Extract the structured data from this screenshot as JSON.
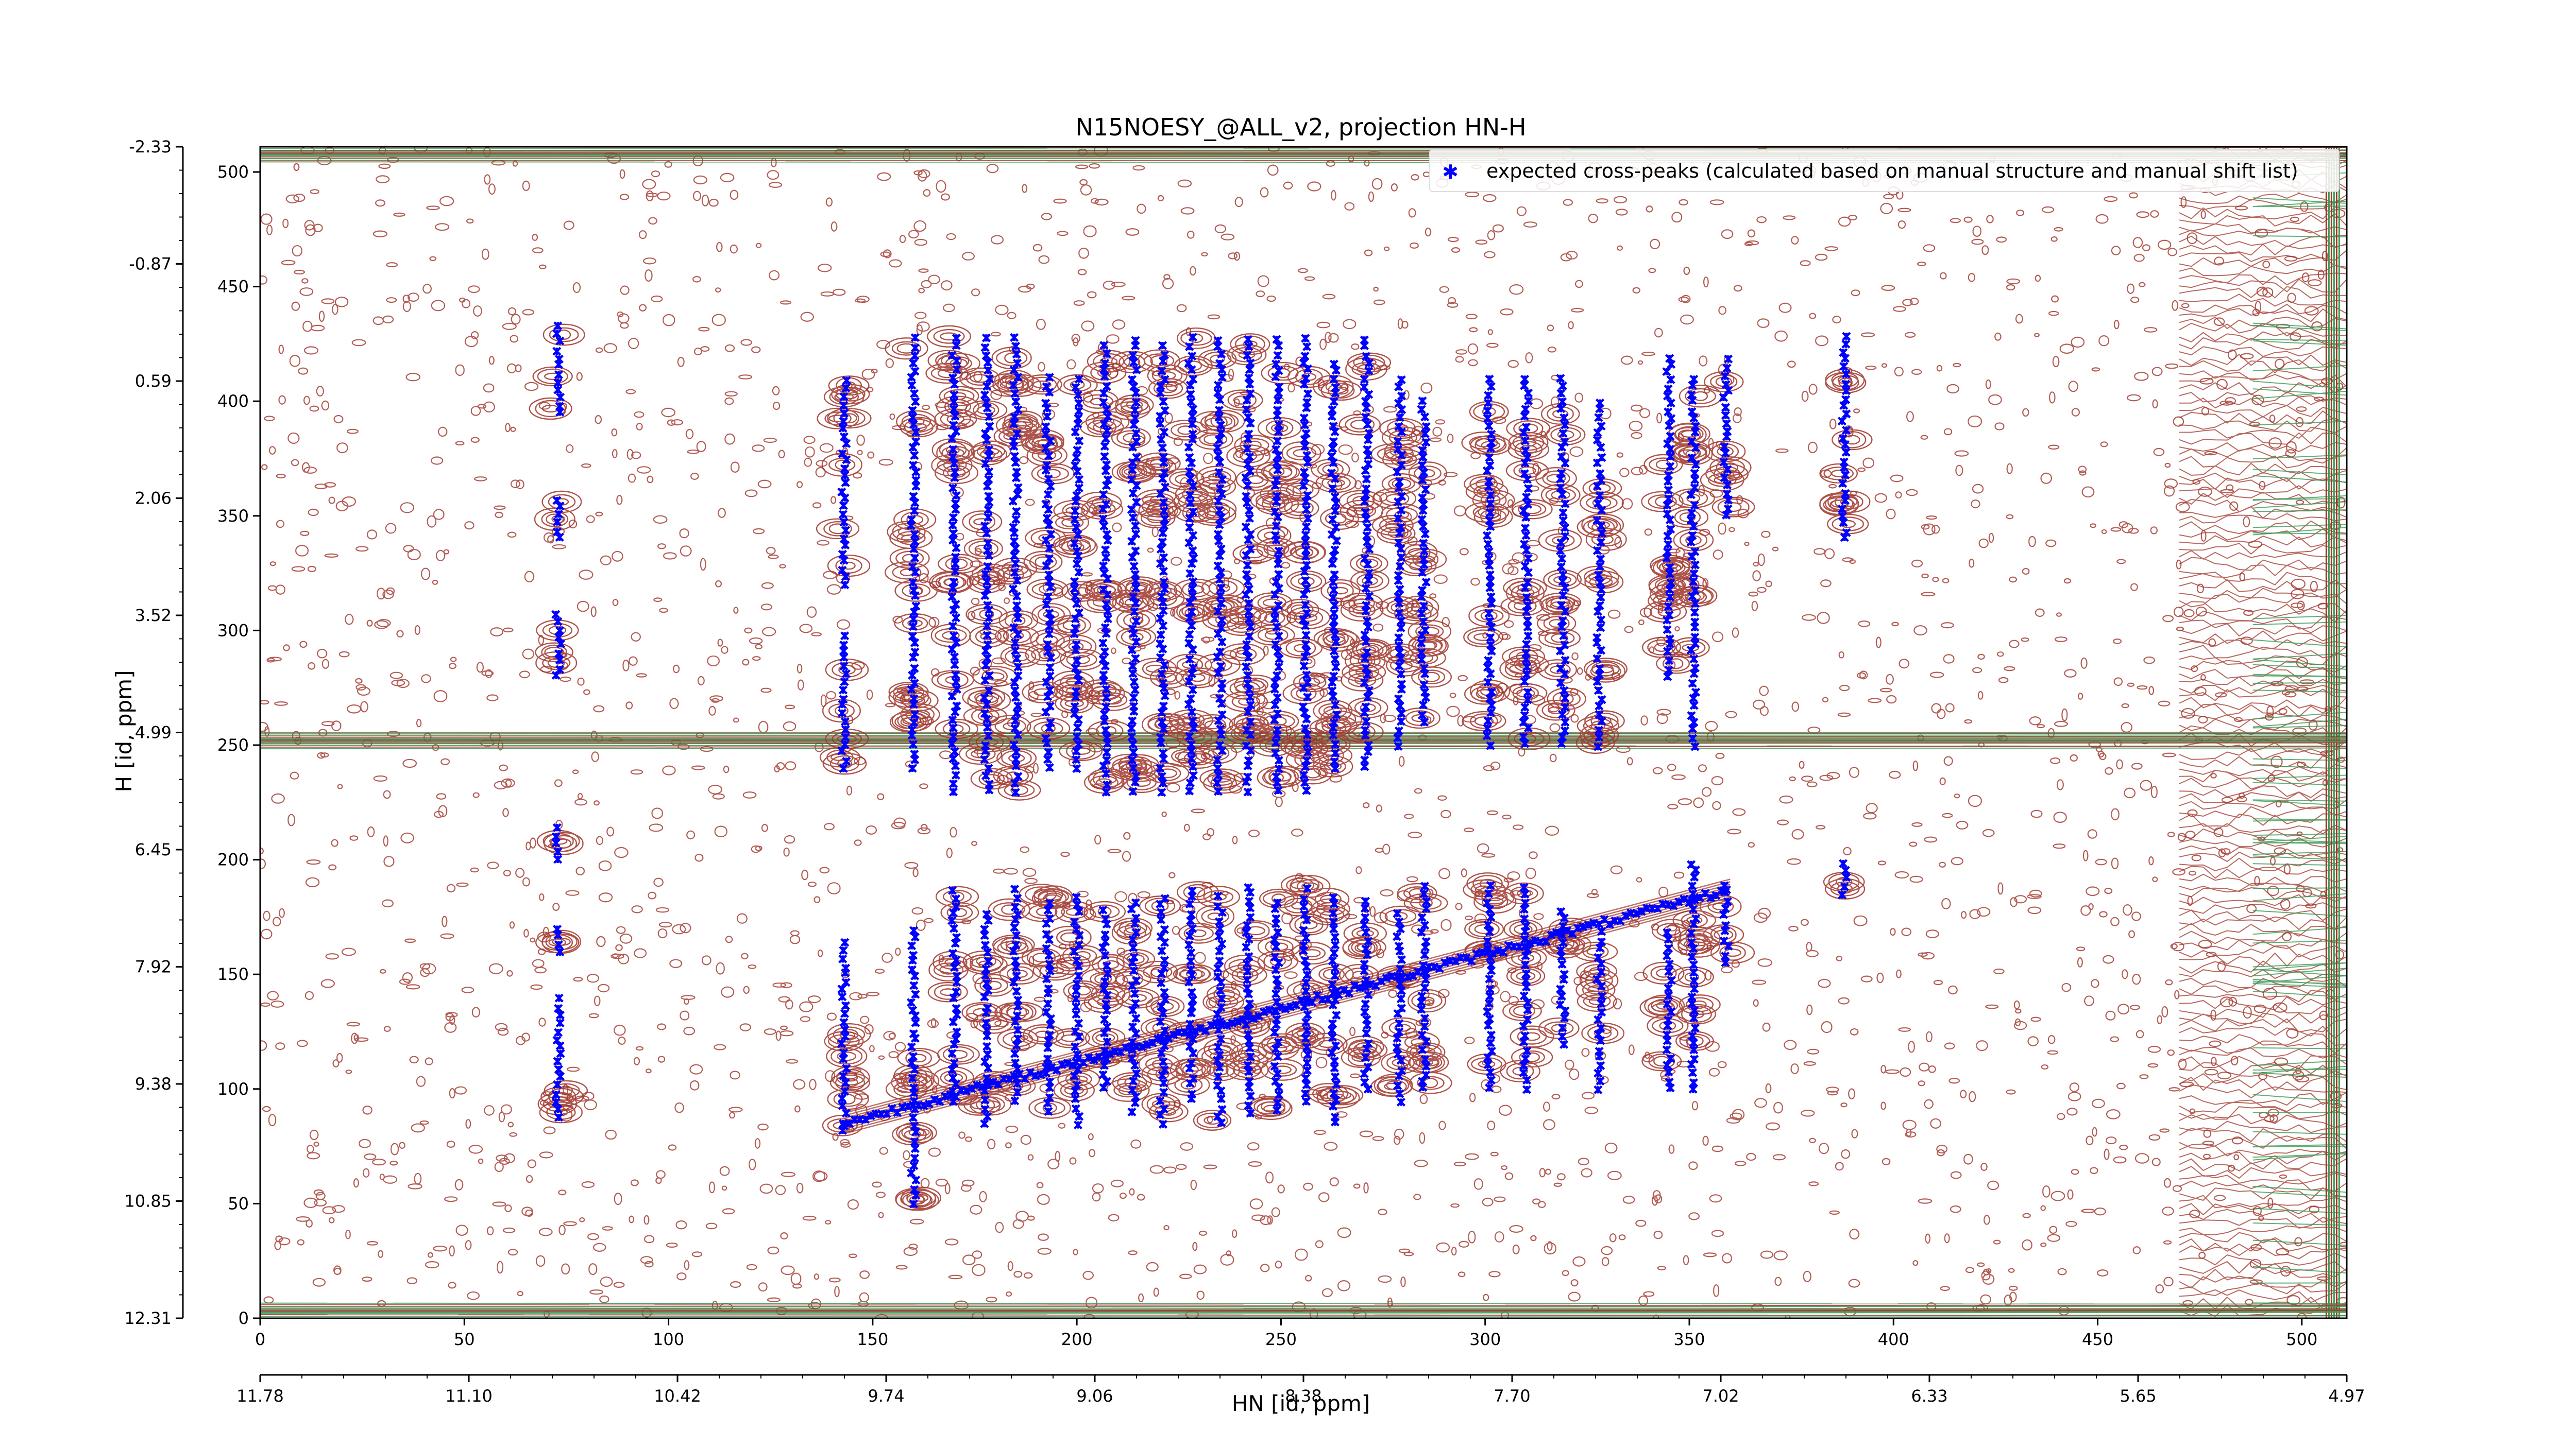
{
  "chart_data": {
    "type": "scatter",
    "title": "N15NOESY_@ALL_v2, projection HN-H",
    "xlabel": "HN [id, ppm]",
    "ylabel": "H [id, ppm]",
    "x_points_label": "pixel",
    "xlim": [
      0,
      511
    ],
    "ylim": [
      0,
      511
    ],
    "x_ticks": [
      0,
      50,
      100,
      150,
      200,
      250,
      300,
      350,
      400,
      450,
      500
    ],
    "y_ticks": [
      0,
      50,
      100,
      150,
      200,
      250,
      300,
      350,
      400,
      450,
      500
    ],
    "x_ppm_ticks": [
      "11.78",
      "11.10",
      "10.42",
      "9.74",
      "9.06",
      "8.38",
      "7.70",
      "7.02",
      "6.33",
      "5.65",
      "4.97"
    ],
    "y_ppm_ticks": [
      "12.31",
      "10.85",
      "9.38",
      "7.92",
      "6.45",
      "4.99",
      "3.52",
      "2.06",
      "0.59",
      "-0.87",
      "-2.33"
    ],
    "legend": {
      "label": "expected cross-peaks (calculated based on manual structure and manual shift list)",
      "placement": "top-right"
    },
    "colors": {
      "markers": "#0000ff",
      "positive_contours": "#a0352a",
      "negative_contours": "#3a9a55"
    },
    "horizontal_bands": [
      3,
      252,
      508
    ],
    "series": [
      {
        "marker": "x",
        "columns": [
          {
            "x": 73,
            "y_ranges": [
              [
                88,
                140
              ],
              [
                160,
                172
              ],
              [
                200,
                215
              ],
              [
                280,
                310
              ],
              [
                340,
                360
              ],
              [
                395,
                435
              ]
            ]
          },
          {
            "x": 143,
            "y_ranges": [
              [
                82,
                165
              ],
              [
                240,
                300
              ],
              [
                320,
                410
              ]
            ]
          },
          {
            "x": 160,
            "y_ranges": [
              [
                50,
                170
              ],
              [
                240,
                430
              ]
            ]
          },
          {
            "x": 170,
            "y_ranges": [
              [
                95,
                190
              ],
              [
                230,
                430
              ]
            ]
          },
          {
            "x": 178,
            "y_ranges": [
              [
                85,
                180
              ],
              [
                230,
                430
              ]
            ]
          },
          {
            "x": 185,
            "y_ranges": [
              [
                95,
                190
              ],
              [
                230,
                430
              ]
            ]
          },
          {
            "x": 193,
            "y_ranges": [
              [
                90,
                185
              ],
              [
                240,
                410
              ]
            ]
          },
          {
            "x": 200,
            "y_ranges": [
              [
                85,
                185
              ],
              [
                240,
                410
              ]
            ]
          },
          {
            "x": 207,
            "y_ranges": [
              [
                100,
                180
              ],
              [
                230,
                425
              ]
            ]
          },
          {
            "x": 214,
            "y_ranges": [
              [
                90,
                185
              ],
              [
                230,
                430
              ]
            ]
          },
          {
            "x": 221,
            "y_ranges": [
              [
                85,
                185
              ],
              [
                230,
                425
              ]
            ]
          },
          {
            "x": 228,
            "y_ranges": [
              [
                95,
                190
              ],
              [
                230,
                430
              ]
            ]
          },
          {
            "x": 235,
            "y_ranges": [
              [
                85,
                185
              ],
              [
                230,
                430
              ]
            ]
          },
          {
            "x": 242,
            "y_ranges": [
              [
                90,
                190
              ],
              [
                230,
                430
              ]
            ]
          },
          {
            "x": 249,
            "y_ranges": [
              [
                90,
                185
              ],
              [
                230,
                430
              ]
            ]
          },
          {
            "x": 256,
            "y_ranges": [
              [
                95,
                190
              ],
              [
                230,
                430
              ]
            ]
          },
          {
            "x": 263,
            "y_ranges": [
              [
                85,
                185
              ],
              [
                240,
                420
              ]
            ]
          },
          {
            "x": 271,
            "y_ranges": [
              [
                100,
                185
              ],
              [
                240,
                430
              ]
            ]
          },
          {
            "x": 279,
            "y_ranges": [
              [
                95,
                180
              ],
              [
                250,
                410
              ]
            ]
          },
          {
            "x": 285,
            "y_ranges": [
              [
                100,
                190
              ],
              [
                260,
                400
              ]
            ]
          },
          {
            "x": 301,
            "y_ranges": [
              [
                100,
                190
              ],
              [
                250,
                410
              ]
            ]
          },
          {
            "x": 310,
            "y_ranges": [
              [
                100,
                190
              ],
              [
                250,
                410
              ]
            ]
          },
          {
            "x": 319,
            "y_ranges": [
              [
                120,
                180
              ],
              [
                250,
                410
              ]
            ]
          },
          {
            "x": 328,
            "y_ranges": [
              [
                100,
                170
              ],
              [
                250,
                400
              ]
            ]
          },
          {
            "x": 345,
            "y_ranges": [
              [
                100,
                170
              ],
              [
                280,
                420
              ]
            ]
          },
          {
            "x": 351,
            "y_ranges": [
              [
                100,
                200
              ],
              [
                250,
                410
              ]
            ]
          },
          {
            "x": 359,
            "y_ranges": [
              [
                155,
                190
              ],
              [
                350,
                420
              ]
            ]
          },
          {
            "x": 388,
            "y_ranges": [
              [
                185,
                200
              ],
              [
                340,
                430
              ]
            ]
          }
        ],
        "diagonal": {
          "from": [
            143,
            85
          ],
          "to": [
            360,
            187
          ]
        }
      }
    ]
  }
}
